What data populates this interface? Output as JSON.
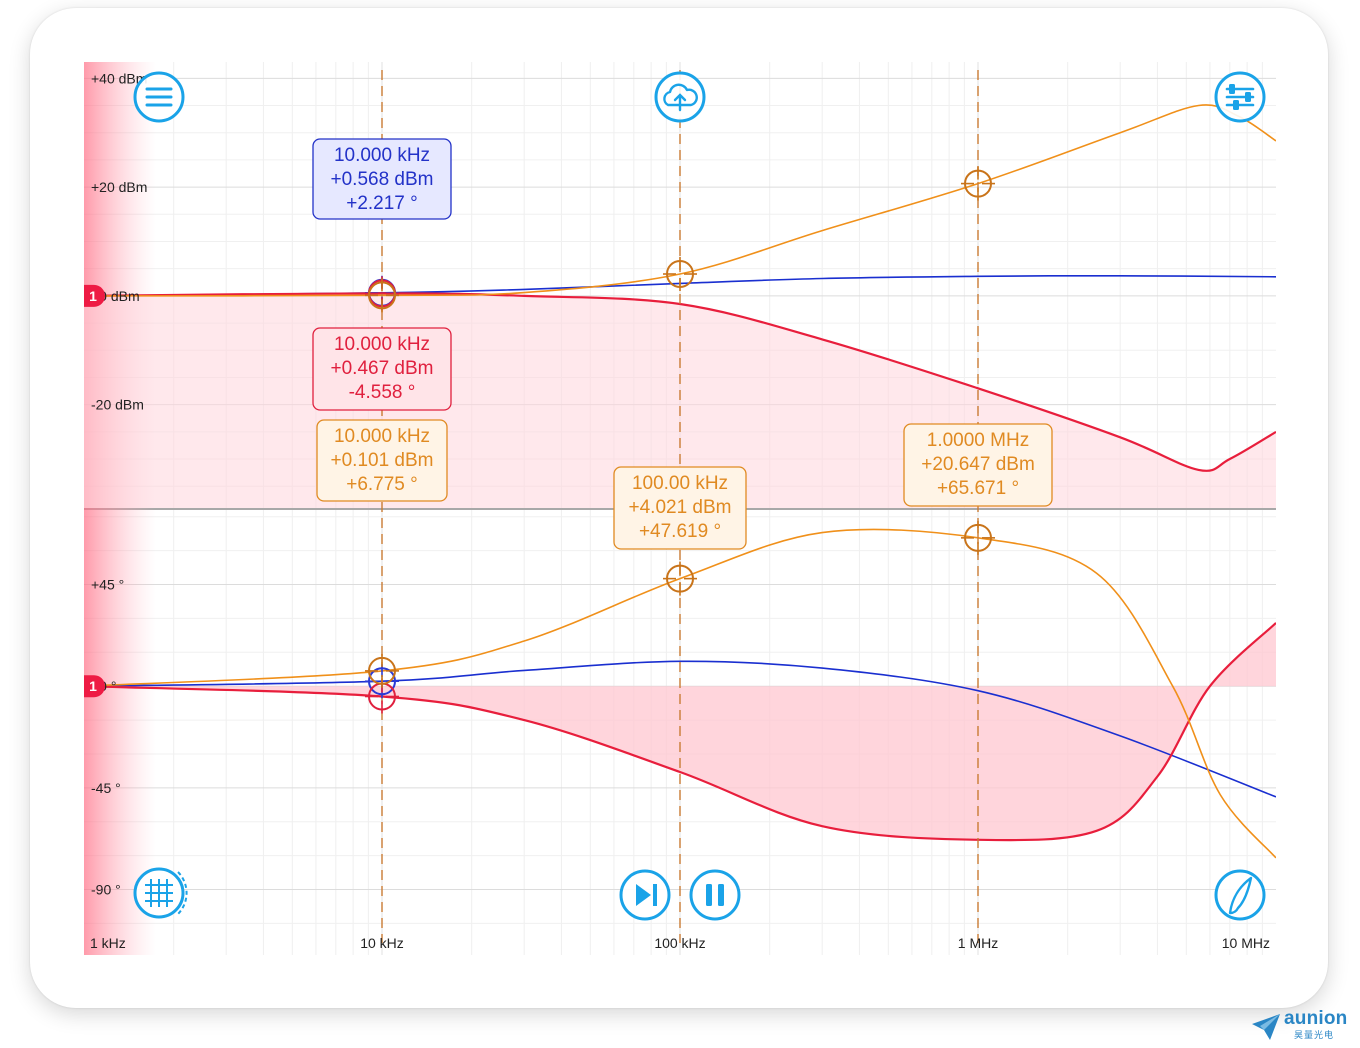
{
  "chart_data": {
    "type": "line",
    "x_ticks": [
      "1 kHz",
      "10 kHz",
      "100 kHz",
      "1 MHz",
      "10 MHz"
    ],
    "x_range_hz": [
      1000,
      10000000
    ],
    "x_scale": "log",
    "magnitude_panel": {
      "y_ticks": [
        "+40 dBm",
        "+20 dBm",
        "+0 dBm",
        "-20 dBm"
      ],
      "ylim": [
        -39,
        43
      ],
      "series": [
        {
          "color": "#1a2fd0",
          "points": [
            [
              1000,
              0
            ],
            [
              10000,
              0.568
            ],
            [
              30000,
              1.2
            ],
            [
              100000,
              2.3
            ],
            [
              300000,
              3.2
            ],
            [
              1000000,
              3.6
            ],
            [
              3000000,
              3.7
            ],
            [
              10000000,
              3.5
            ]
          ]
        },
        {
          "color": "#e81e3c",
          "points": [
            [
              1000,
              0
            ],
            [
              10000,
              0.467
            ],
            [
              30000,
              0
            ],
            [
              100000,
              -1.5
            ],
            [
              300000,
              -8
            ],
            [
              1000000,
              -17
            ],
            [
              3000000,
              -26
            ],
            [
              5500000,
              -32
            ],
            [
              7000000,
              -30
            ],
            [
              10000000,
              -25
            ]
          ]
        },
        {
          "color": "#f0901a",
          "points": [
            [
              1000,
              0
            ],
            [
              10000,
              0.101
            ],
            [
              30000,
              0.6
            ],
            [
              100000,
              4.021
            ],
            [
              300000,
              12
            ],
            [
              1000000,
              20.647
            ],
            [
              3000000,
              30
            ],
            [
              5500000,
              35
            ],
            [
              7500000,
              33
            ],
            [
              10000000,
              28.5
            ]
          ]
        }
      ]
    },
    "phase_panel": {
      "y_ticks": [
        "+45 °",
        "+0 °",
        "-45 °",
        "-90 °"
      ],
      "ylim": [
        -119,
        78
      ],
      "series": [
        {
          "color": "#1a2fd0",
          "points": [
            [
              1000,
              0
            ],
            [
              10000,
              2.2
            ],
            [
              30000,
              7
            ],
            [
              100000,
              11
            ],
            [
              300000,
              8
            ],
            [
              1000000,
              -2
            ],
            [
              3000000,
              -22
            ],
            [
              10000000,
              -49
            ]
          ]
        },
        {
          "color": "#e81e3c",
          "points": [
            [
              1000,
              0
            ],
            [
              10000,
              -4.558
            ],
            [
              30000,
              -15
            ],
            [
              100000,
              -38
            ],
            [
              300000,
              -62
            ],
            [
              1000000,
              -68
            ],
            [
              2500000,
              -64
            ],
            [
              4000000,
              -40
            ],
            [
              6000000,
              0
            ],
            [
              10000000,
              28
            ]
          ]
        },
        {
          "color": "#f0901a",
          "points": [
            [
              1000,
              0
            ],
            [
              10000,
              6.775
            ],
            [
              30000,
              20
            ],
            [
              100000,
              47.619
            ],
            [
              300000,
              68
            ],
            [
              1000000,
              65.671
            ],
            [
              2500000,
              50
            ],
            [
              4500000,
              0
            ],
            [
              6500000,
              -48
            ],
            [
              10000000,
              -76
            ]
          ]
        }
      ]
    },
    "markers": [
      10000,
      100000,
      1000000
    ],
    "readouts": [
      {
        "color": "#2332c8",
        "x_hz": 10000,
        "lines": [
          "10.000 kHz",
          "+0.568 dBm",
          "+2.217 °"
        ]
      },
      {
        "color": "#e0203e",
        "x_hz": 10000,
        "lines": [
          "10.000 kHz",
          "+0.467 dBm",
          "-4.558 °"
        ]
      },
      {
        "color": "#e08a22",
        "x_hz": 10000,
        "lines": [
          "10.000 kHz",
          "+0.101 dBm",
          "+6.775 °"
        ]
      },
      {
        "color": "#e08a22",
        "x_hz": 100000,
        "lines": [
          "100.00 kHz",
          "+4.021 dBm",
          "+47.619 °"
        ]
      },
      {
        "color": "#e08a22",
        "x_hz": 1000000,
        "lines": [
          "1.0000 MHz",
          "+20.647 dBm",
          "+65.671 °"
        ]
      }
    ],
    "reference_badge": "1"
  },
  "toolbar": {
    "icons": [
      "menu-icon",
      "cloud-upload-icon",
      "sliders-icon",
      "grid-icon",
      "skip-forward-icon",
      "pause-icon",
      "probe-icon"
    ],
    "accent": "#1aa3e8"
  },
  "brand": {
    "name": "aunion",
    "sub": "昊量光电"
  }
}
